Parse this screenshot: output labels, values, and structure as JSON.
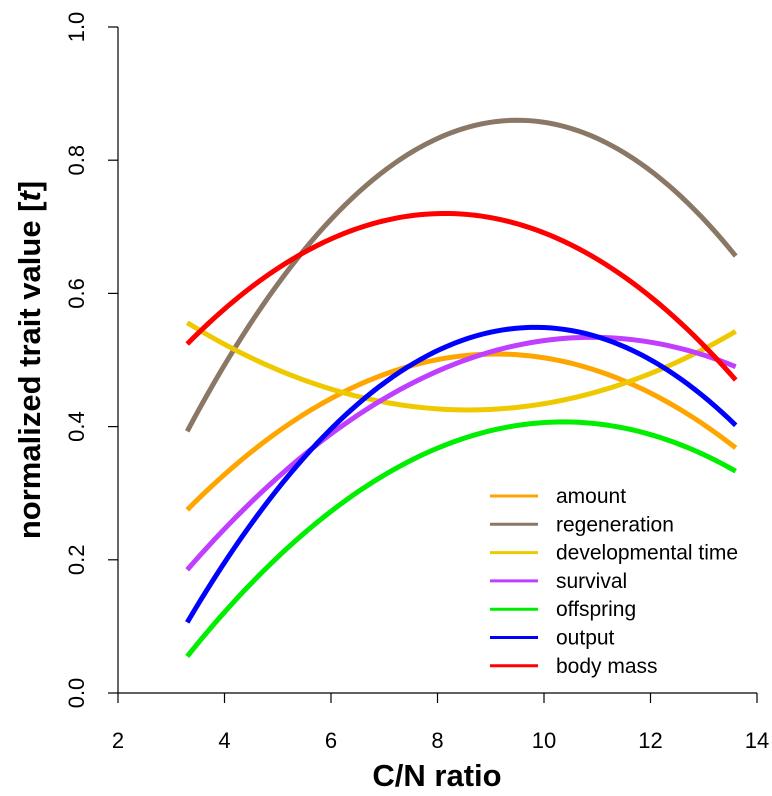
{
  "chart_data": {
    "type": "line",
    "title": "",
    "xlabel": "C/N ratio",
    "ylabel": "normalized trait value [t]",
    "xlim": [
      2,
      14
    ],
    "ylim": [
      0,
      1
    ],
    "x_ticks": [
      "2",
      "4",
      "6",
      "8",
      "10",
      "12",
      "14"
    ],
    "y_ticks": [
      "0.0",
      "0.2",
      "0.4",
      "0.6",
      "0.8",
      "1.0"
    ],
    "legend_position": "bottom-right",
    "grid": false,
    "series": [
      {
        "name": "amount",
        "color": "#ffa500",
        "x": [
          3.3,
          9.1,
          13.6
        ],
        "y": [
          0.275,
          0.509,
          0.368
        ]
      },
      {
        "name": "regeneration",
        "color": "#8b7765",
        "x": [
          3.3,
          9.5,
          13.6
        ],
        "y": [
          0.393,
          0.86,
          0.656
        ]
      },
      {
        "name": "developmental time",
        "color": "#eec900",
        "x": [
          3.3,
          8.6,
          13.6
        ],
        "y": [
          0.556,
          0.425,
          0.543
        ]
      },
      {
        "name": "survival",
        "color": "#bf3eff",
        "x": [
          3.3,
          11.0,
          13.6
        ],
        "y": [
          0.185,
          0.534,
          0.49
        ]
      },
      {
        "name": "offspring",
        "color": "#00ee00",
        "x": [
          3.3,
          10.4,
          13.6
        ],
        "y": [
          0.055,
          0.407,
          0.333
        ]
      },
      {
        "name": "output",
        "color": "#0000ff",
        "x": [
          3.3,
          9.8,
          13.6
        ],
        "y": [
          0.106,
          0.549,
          0.402
        ]
      },
      {
        "name": "body mass",
        "color": "#ff0000",
        "x": [
          3.3,
          8.1,
          13.6
        ],
        "y": [
          0.524,
          0.72,
          0.47
        ]
      }
    ]
  }
}
